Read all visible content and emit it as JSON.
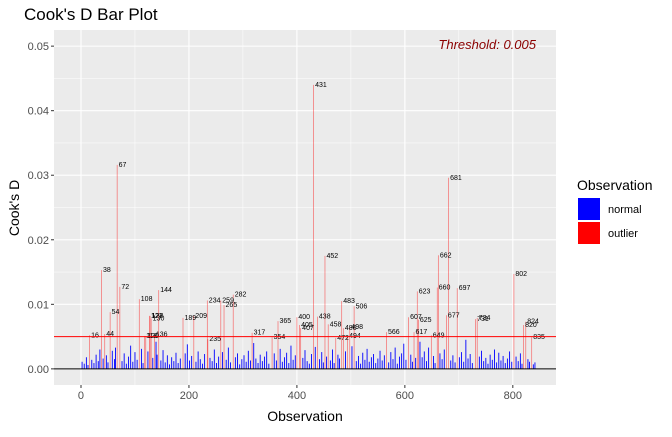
{
  "chart_data": {
    "type": "bar",
    "title": "Cook's D Bar Plot",
    "xlabel": "Observation",
    "ylabel": "Cook's D",
    "xlim": [
      -50,
      880
    ],
    "ylim": [
      -0.0025,
      0.0525
    ],
    "x_ticks": [
      0,
      200,
      400,
      600,
      800
    ],
    "y_ticks": [
      0.0,
      0.01,
      0.02,
      0.03,
      0.04,
      0.05
    ],
    "x_tick_labels": [
      "0",
      "200",
      "400",
      "600",
      "800"
    ],
    "y_tick_labels": [
      "0.00",
      "0.01",
      "0.02",
      "0.03",
      "0.04",
      "0.05"
    ],
    "threshold": 0.005,
    "threshold_label": "Threshold: 0.005",
    "grid": true,
    "legend": {
      "title": "Observation",
      "position": "right",
      "entries": [
        {
          "name": "normal",
          "color": "#0000ff"
        },
        {
          "name": "outlier",
          "color": "#ff0000"
        }
      ]
    },
    "colors": {
      "normal": "#0000ff",
      "outlier": "#ff0000",
      "threshold_line": "#ff0000",
      "threshold_text": "#8b0000",
      "panel": "#ebebeb"
    },
    "outliers": [
      {
        "x": 16,
        "y": 0.0052
      },
      {
        "x": 38,
        "y": 0.0153
      },
      {
        "x": 44,
        "y": 0.0054
      },
      {
        "x": 54,
        "y": 0.0088
      },
      {
        "x": 67,
        "y": 0.0316
      },
      {
        "x": 72,
        "y": 0.0127
      },
      {
        "x": 108,
        "y": 0.0108
      },
      {
        "x": 118,
        "y": 0.0051
      },
      {
        "x": 120,
        "y": 0.0051
      },
      {
        "x": 127,
        "y": 0.0082
      },
      {
        "x": 128,
        "y": 0.0082
      },
      {
        "x": 130,
        "y": 0.0078
      },
      {
        "x": 136,
        "y": 0.0053
      },
      {
        "x": 144,
        "y": 0.0122
      },
      {
        "x": 189,
        "y": 0.0079
      },
      {
        "x": 209,
        "y": 0.0082
      },
      {
        "x": 234,
        "y": 0.0106
      },
      {
        "x": 235,
        "y": 0.0046
      },
      {
        "x": 259,
        "y": 0.0106
      },
      {
        "x": 265,
        "y": 0.0099
      },
      {
        "x": 282,
        "y": 0.0115
      },
      {
        "x": 317,
        "y": 0.0056
      },
      {
        "x": 354,
        "y": 0.0049
      },
      {
        "x": 365,
        "y": 0.0074
      },
      {
        "x": 400,
        "y": 0.008
      },
      {
        "x": 405,
        "y": 0.0068
      },
      {
        "x": 407,
        "y": 0.0063
      },
      {
        "x": 431,
        "y": 0.044
      },
      {
        "x": 438,
        "y": 0.0081
      },
      {
        "x": 452,
        "y": 0.0175
      },
      {
        "x": 458,
        "y": 0.0069
      },
      {
        "x": 472,
        "y": 0.0048
      },
      {
        "x": 483,
        "y": 0.0105
      },
      {
        "x": 486,
        "y": 0.0063
      },
      {
        "x": 494,
        "y": 0.0051
      },
      {
        "x": 498,
        "y": 0.0065
      },
      {
        "x": 506,
        "y": 0.0097
      },
      {
        "x": 566,
        "y": 0.0057
      },
      {
        "x": 607,
        "y": 0.008
      },
      {
        "x": 617,
        "y": 0.0057
      },
      {
        "x": 623,
        "y": 0.012
      },
      {
        "x": 625,
        "y": 0.0076
      },
      {
        "x": 649,
        "y": 0.0052
      },
      {
        "x": 660,
        "y": 0.0126
      },
      {
        "x": 662,
        "y": 0.0176
      },
      {
        "x": 677,
        "y": 0.0083
      },
      {
        "x": 681,
        "y": 0.0296
      },
      {
        "x": 697,
        "y": 0.0125
      },
      {
        "x": 731,
        "y": 0.0077
      },
      {
        "x": 734,
        "y": 0.0079
      },
      {
        "x": 802,
        "y": 0.0147
      },
      {
        "x": 820,
        "y": 0.0068
      },
      {
        "x": 824,
        "y": 0.0073
      },
      {
        "x": 835,
        "y": 0.0049
      }
    ],
    "normal_bars": [
      {
        "x": 2,
        "y": 0.0011
      },
      {
        "x": 6,
        "y": 0.0008
      },
      {
        "x": 10,
        "y": 0.0018
      },
      {
        "x": 13,
        "y": 0.0006
      },
      {
        "x": 20,
        "y": 0.0014
      },
      {
        "x": 24,
        "y": 0.0009
      },
      {
        "x": 28,
        "y": 0.0022
      },
      {
        "x": 32,
        "y": 0.0012
      },
      {
        "x": 35,
        "y": 0.003
      },
      {
        "x": 41,
        "y": 0.0016
      },
      {
        "x": 47,
        "y": 0.0021
      },
      {
        "x": 50,
        "y": 0.001
      },
      {
        "x": 58,
        "y": 0.0028
      },
      {
        "x": 62,
        "y": 0.0015
      },
      {
        "x": 64,
        "y": 0.0033
      },
      {
        "x": 76,
        "y": 0.0012
      },
      {
        "x": 80,
        "y": 0.0024
      },
      {
        "x": 84,
        "y": 0.0008
      },
      {
        "x": 88,
        "y": 0.0019
      },
      {
        "x": 92,
        "y": 0.0036
      },
      {
        "x": 96,
        "y": 0.0011
      },
      {
        "x": 100,
        "y": 0.0026
      },
      {
        "x": 104,
        "y": 0.0014
      },
      {
        "x": 112,
        "y": 0.0031
      },
      {
        "x": 115,
        "y": 0.0009
      },
      {
        "x": 124,
        "y": 0.0027
      },
      {
        "x": 133,
        "y": 0.0017
      },
      {
        "x": 139,
        "y": 0.0042
      },
      {
        "x": 141,
        "y": 0.0022
      },
      {
        "x": 148,
        "y": 0.0013
      },
      {
        "x": 152,
        "y": 0.0029
      },
      {
        "x": 156,
        "y": 0.001
      },
      {
        "x": 160,
        "y": 0.0021
      },
      {
        "x": 164,
        "y": 0.0007
      },
      {
        "x": 168,
        "y": 0.0018
      },
      {
        "x": 172,
        "y": 0.0012
      },
      {
        "x": 176,
        "y": 0.0025
      },
      {
        "x": 180,
        "y": 0.0009
      },
      {
        "x": 184,
        "y": 0.0016
      },
      {
        "x": 193,
        "y": 0.0024
      },
      {
        "x": 197,
        "y": 0.0038
      },
      {
        "x": 201,
        "y": 0.0013
      },
      {
        "x": 205,
        "y": 0.002
      },
      {
        "x": 213,
        "y": 0.0011
      },
      {
        "x": 217,
        "y": 0.0027
      },
      {
        "x": 221,
        "y": 0.0015
      },
      {
        "x": 225,
        "y": 0.0008
      },
      {
        "x": 229,
        "y": 0.0023
      },
      {
        "x": 239,
        "y": 0.0017
      },
      {
        "x": 243,
        "y": 0.0012
      },
      {
        "x": 247,
        "y": 0.003
      },
      {
        "x": 251,
        "y": 0.0009
      },
      {
        "x": 255,
        "y": 0.0019
      },
      {
        "x": 262,
        "y": 0.0026
      },
      {
        "x": 269,
        "y": 0.0014
      },
      {
        "x": 273,
        "y": 0.0033
      },
      {
        "x": 277,
        "y": 0.001
      },
      {
        "x": 286,
        "y": 0.0018
      },
      {
        "x": 290,
        "y": 0.0024
      },
      {
        "x": 294,
        "y": 0.0007
      },
      {
        "x": 298,
        "y": 0.0015
      },
      {
        "x": 302,
        "y": 0.0021
      },
      {
        "x": 306,
        "y": 0.0011
      },
      {
        "x": 310,
        "y": 0.0028
      },
      {
        "x": 314,
        "y": 0.0013
      },
      {
        "x": 320,
        "y": 0.004
      },
      {
        "x": 324,
        "y": 0.0016
      },
      {
        "x": 328,
        "y": 0.0009
      },
      {
        "x": 332,
        "y": 0.0022
      },
      {
        "x": 336,
        "y": 0.0012
      },
      {
        "x": 340,
        "y": 0.0019
      },
      {
        "x": 344,
        "y": 0.0027
      },
      {
        "x": 348,
        "y": 0.0008
      },
      {
        "x": 358,
        "y": 0.0024
      },
      {
        "x": 362,
        "y": 0.0013
      },
      {
        "x": 369,
        "y": 0.0031
      },
      {
        "x": 373,
        "y": 0.0011
      },
      {
        "x": 377,
        "y": 0.0018
      },
      {
        "x": 381,
        "y": 0.0025
      },
      {
        "x": 385,
        "y": 0.0009
      },
      {
        "x": 389,
        "y": 0.0036
      },
      {
        "x": 393,
        "y": 0.0014
      },
      {
        "x": 397,
        "y": 0.0021
      },
      {
        "x": 411,
        "y": 0.0017
      },
      {
        "x": 415,
        "y": 0.0029
      },
      {
        "x": 419,
        "y": 0.0012
      },
      {
        "x": 423,
        "y": 0.0008
      },
      {
        "x": 427,
        "y": 0.0023
      },
      {
        "x": 434,
        "y": 0.0034
      },
      {
        "x": 442,
        "y": 0.0015
      },
      {
        "x": 446,
        "y": 0.0026
      },
      {
        "x": 449,
        "y": 0.001
      },
      {
        "x": 455,
        "y": 0.0019
      },
      {
        "x": 462,
        "y": 0.0013
      },
      {
        "x": 466,
        "y": 0.003
      },
      {
        "x": 469,
        "y": 0.0009
      },
      {
        "x": 476,
        "y": 0.0022
      },
      {
        "x": 479,
        "y": 0.0016
      },
      {
        "x": 490,
        "y": 0.0027
      },
      {
        "x": 502,
        "y": 0.0035
      },
      {
        "x": 510,
        "y": 0.0012
      },
      {
        "x": 514,
        "y": 0.002
      },
      {
        "x": 518,
        "y": 0.0008
      },
      {
        "x": 522,
        "y": 0.0025
      },
      {
        "x": 526,
        "y": 0.0014
      },
      {
        "x": 530,
        "y": 0.0031
      },
      {
        "x": 534,
        "y": 0.0011
      },
      {
        "x": 538,
        "y": 0.0018
      },
      {
        "x": 542,
        "y": 0.0023
      },
      {
        "x": 546,
        "y": 0.0009
      },
      {
        "x": 550,
        "y": 0.0016
      },
      {
        "x": 554,
        "y": 0.0028
      },
      {
        "x": 558,
        "y": 0.0013
      },
      {
        "x": 562,
        "y": 0.0021
      },
      {
        "x": 570,
        "y": 0.001
      },
      {
        "x": 574,
        "y": 0.0026
      },
      {
        "x": 578,
        "y": 0.0015
      },
      {
        "x": 582,
        "y": 0.0033
      },
      {
        "x": 586,
        "y": 0.0008
      },
      {
        "x": 590,
        "y": 0.0019
      },
      {
        "x": 594,
        "y": 0.0024
      },
      {
        "x": 598,
        "y": 0.0039
      },
      {
        "x": 602,
        "y": 0.0014
      },
      {
        "x": 611,
        "y": 0.0022
      },
      {
        "x": 614,
        "y": 0.0011
      },
      {
        "x": 620,
        "y": 0.0017
      },
      {
        "x": 628,
        "y": 0.0042
      },
      {
        "x": 632,
        "y": 0.0018
      },
      {
        "x": 636,
        "y": 0.0027
      },
      {
        "x": 640,
        "y": 0.0012
      },
      {
        "x": 644,
        "y": 0.0033
      },
      {
        "x": 653,
        "y": 0.002
      },
      {
        "x": 656,
        "y": 0.0009
      },
      {
        "x": 665,
        "y": 0.0024
      },
      {
        "x": 669,
        "y": 0.0015
      },
      {
        "x": 673,
        "y": 0.003
      },
      {
        "x": 685,
        "y": 0.0013
      },
      {
        "x": 689,
        "y": 0.0021
      },
      {
        "x": 693,
        "y": 0.001
      },
      {
        "x": 701,
        "y": 0.0018
      },
      {
        "x": 705,
        "y": 0.0026
      },
      {
        "x": 709,
        "y": 0.0011
      },
      {
        "x": 713,
        "y": 0.0045
      },
      {
        "x": 717,
        "y": 0.0016
      },
      {
        "x": 721,
        "y": 0.0023
      },
      {
        "x": 725,
        "y": 0.0009
      },
      {
        "x": 738,
        "y": 0.0019
      },
      {
        "x": 742,
        "y": 0.0028
      },
      {
        "x": 746,
        "y": 0.0012
      },
      {
        "x": 750,
        "y": 0.0017
      },
      {
        "x": 754,
        "y": 0.0008
      },
      {
        "x": 758,
        "y": 0.0022
      },
      {
        "x": 762,
        "y": 0.0014
      },
      {
        "x": 766,
        "y": 0.003
      },
      {
        "x": 770,
        "y": 0.001
      },
      {
        "x": 774,
        "y": 0.0025
      },
      {
        "x": 778,
        "y": 0.0013
      },
      {
        "x": 782,
        "y": 0.002
      },
      {
        "x": 786,
        "y": 0.0009
      },
      {
        "x": 790,
        "y": 0.0016
      },
      {
        "x": 794,
        "y": 0.0027
      },
      {
        "x": 798,
        "y": 0.0011
      },
      {
        "x": 806,
        "y": 0.0019
      },
      {
        "x": 810,
        "y": 0.0012
      },
      {
        "x": 814,
        "y": 0.0024
      },
      {
        "x": 817,
        "y": 0.0008
      },
      {
        "x": 828,
        "y": 0.0015
      },
      {
        "x": 831,
        "y": 0.0011
      },
      {
        "x": 838,
        "y": 0.0007
      },
      {
        "x": 841,
        "y": 0.001
      }
    ]
  }
}
